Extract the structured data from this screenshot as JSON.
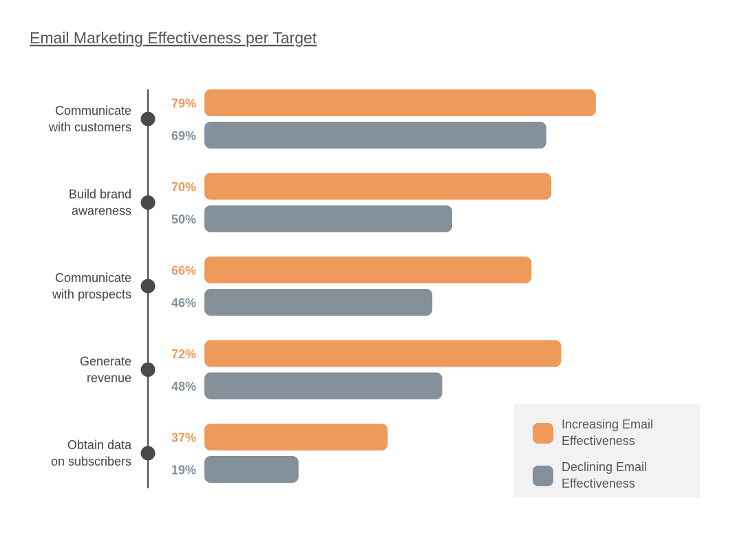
{
  "chart_data": {
    "type": "bar",
    "orientation": "horizontal",
    "title": "Email Marketing Effectiveness per Target",
    "categories": [
      [
        "Communicate",
        "with customers"
      ],
      [
        "Build brand",
        "awareness"
      ],
      [
        "Communicate",
        "with prospects"
      ],
      [
        "Generate",
        "revenue"
      ],
      [
        "Obtain data",
        "on subscribers"
      ]
    ],
    "series": [
      {
        "name": "Increasing Email Effectiveness",
        "name_lines": [
          "Increasing Email",
          "Effectiveness"
        ],
        "color": "#EF9A5D",
        "values": [
          79,
          70,
          66,
          72,
          37
        ]
      },
      {
        "name": "Declining Email Effectiveness",
        "name_lines": [
          "Declining Email",
          "Effectiveness"
        ],
        "color": "#84909A",
        "values": [
          69,
          50,
          46,
          48,
          19
        ]
      }
    ],
    "value_suffix": "%",
    "xlim": [
      0,
      100
    ],
    "legend_position": "bottom-right",
    "grid": false
  },
  "colors": {
    "axis": "#4A4A4A",
    "title": "#555555",
    "label": "#444444",
    "legend_bg": "#F2F2F2"
  }
}
